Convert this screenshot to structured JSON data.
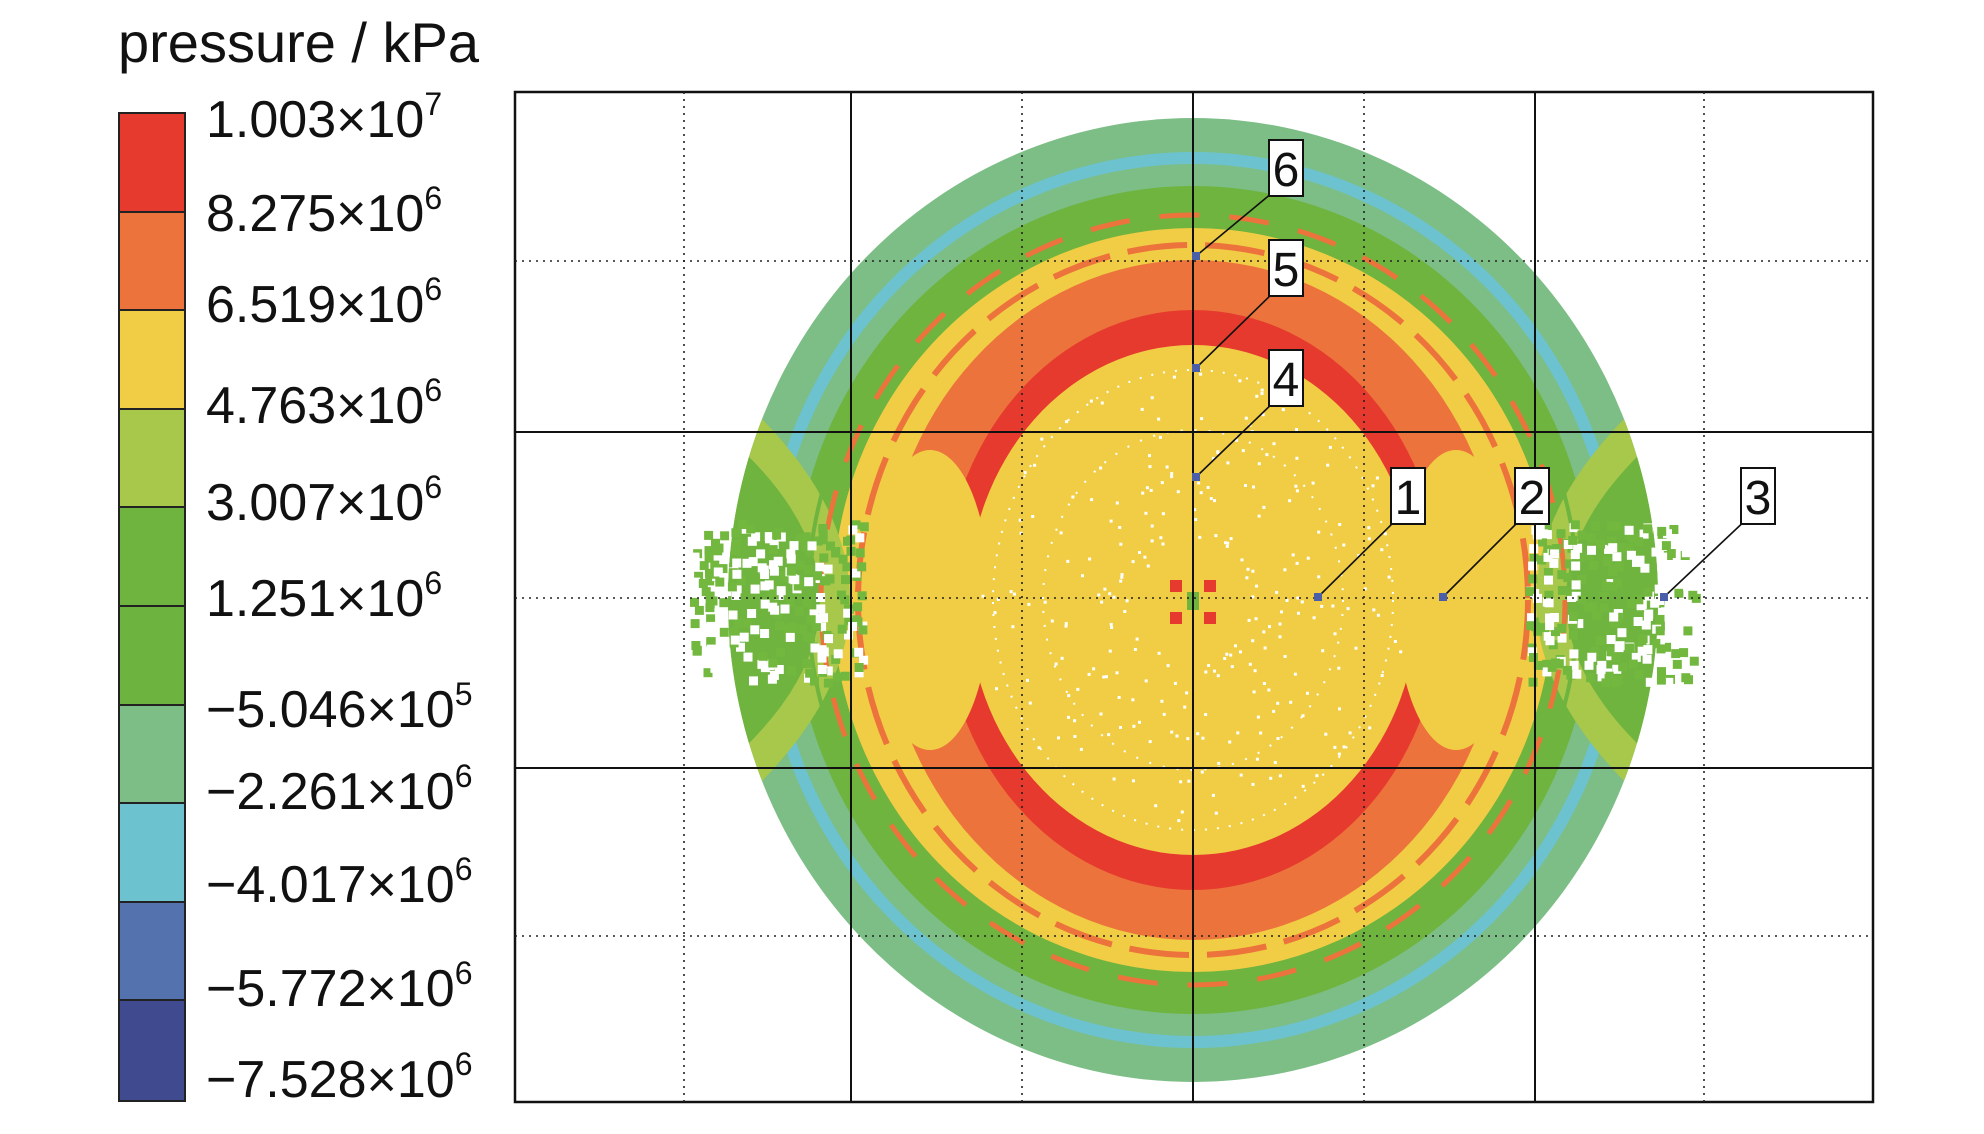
{
  "legend": {
    "title": "pressure / kPa",
    "ticks": [
      {
        "mantissa": "1.003",
        "exp": "7"
      },
      {
        "mantissa": "8.275",
        "exp": "6"
      },
      {
        "mantissa": "6.519",
        "exp": "6"
      },
      {
        "mantissa": "4.763",
        "exp": "6"
      },
      {
        "mantissa": "3.007",
        "exp": "6"
      },
      {
        "mantissa": "1.251",
        "exp": "6"
      },
      {
        "mantissa": "−5.046",
        "exp": "5"
      },
      {
        "mantissa": "−2.261",
        "exp": "6"
      },
      {
        "mantissa": "−4.017",
        "exp": "6"
      },
      {
        "mantissa": "−5.772",
        "exp": "6"
      },
      {
        "mantissa": "−7.528",
        "exp": "6"
      }
    ],
    "band_colors": [
      "#e63a2e",
      "#ec743c",
      "#f1cd45",
      "#a7c84a",
      "#6fb43f",
      "#6cb33f",
      "#7cbe86",
      "#6cc3cf",
      "#5472ad",
      "#3f4b8e"
    ]
  },
  "probe_points": [
    {
      "label": "1"
    },
    {
      "label": "2"
    },
    {
      "label": "3"
    },
    {
      "label": "4"
    },
    {
      "label": "5"
    },
    {
      "label": "6"
    }
  ],
  "colors": {
    "probe_marker": "#4b5ea8",
    "ring_outer": "#7cbe86",
    "ring_cyan": "#6cc3cf",
    "ring_green": "#6fb43f",
    "ring_yellow": "#f1cd45",
    "ring_orange": "#ec743c",
    "ring_red": "#e63a2e",
    "side_lobe": "#a7c84a",
    "speckle": "#72b83f"
  }
}
